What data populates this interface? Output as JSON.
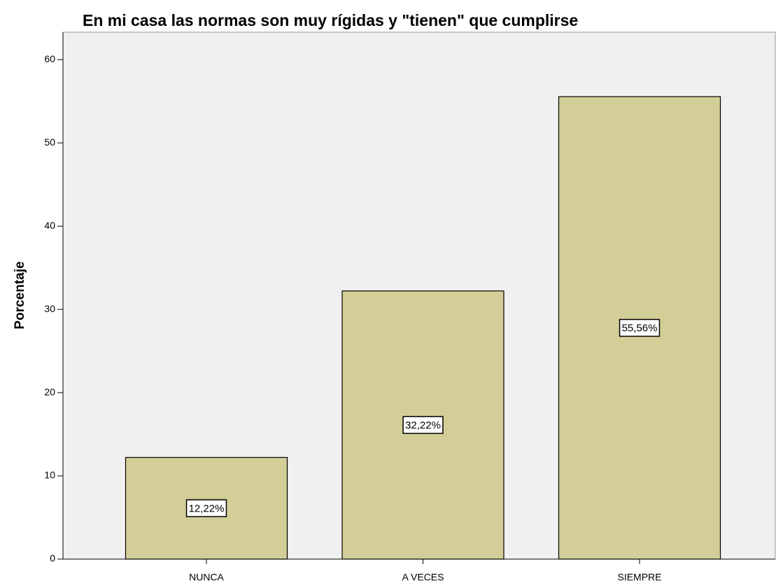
{
  "chart_data": {
    "type": "bar",
    "title": "En mi casa las normas son muy rígidas y \"tienen\" que cumplirse",
    "y_label": "Porcentaje",
    "categories": [
      "NUNCA",
      "A VECES",
      "SIEMPRE"
    ],
    "values": [
      12.22,
      32.22,
      55.56
    ],
    "value_labels": [
      "12,22%",
      "32,22%",
      "55,56%"
    ],
    "color": "#d3ce97",
    "ylim": [
      0,
      63.3
    ],
    "yticks": [
      0,
      10,
      20,
      30,
      40,
      50,
      60
    ],
    "grid": false
  }
}
